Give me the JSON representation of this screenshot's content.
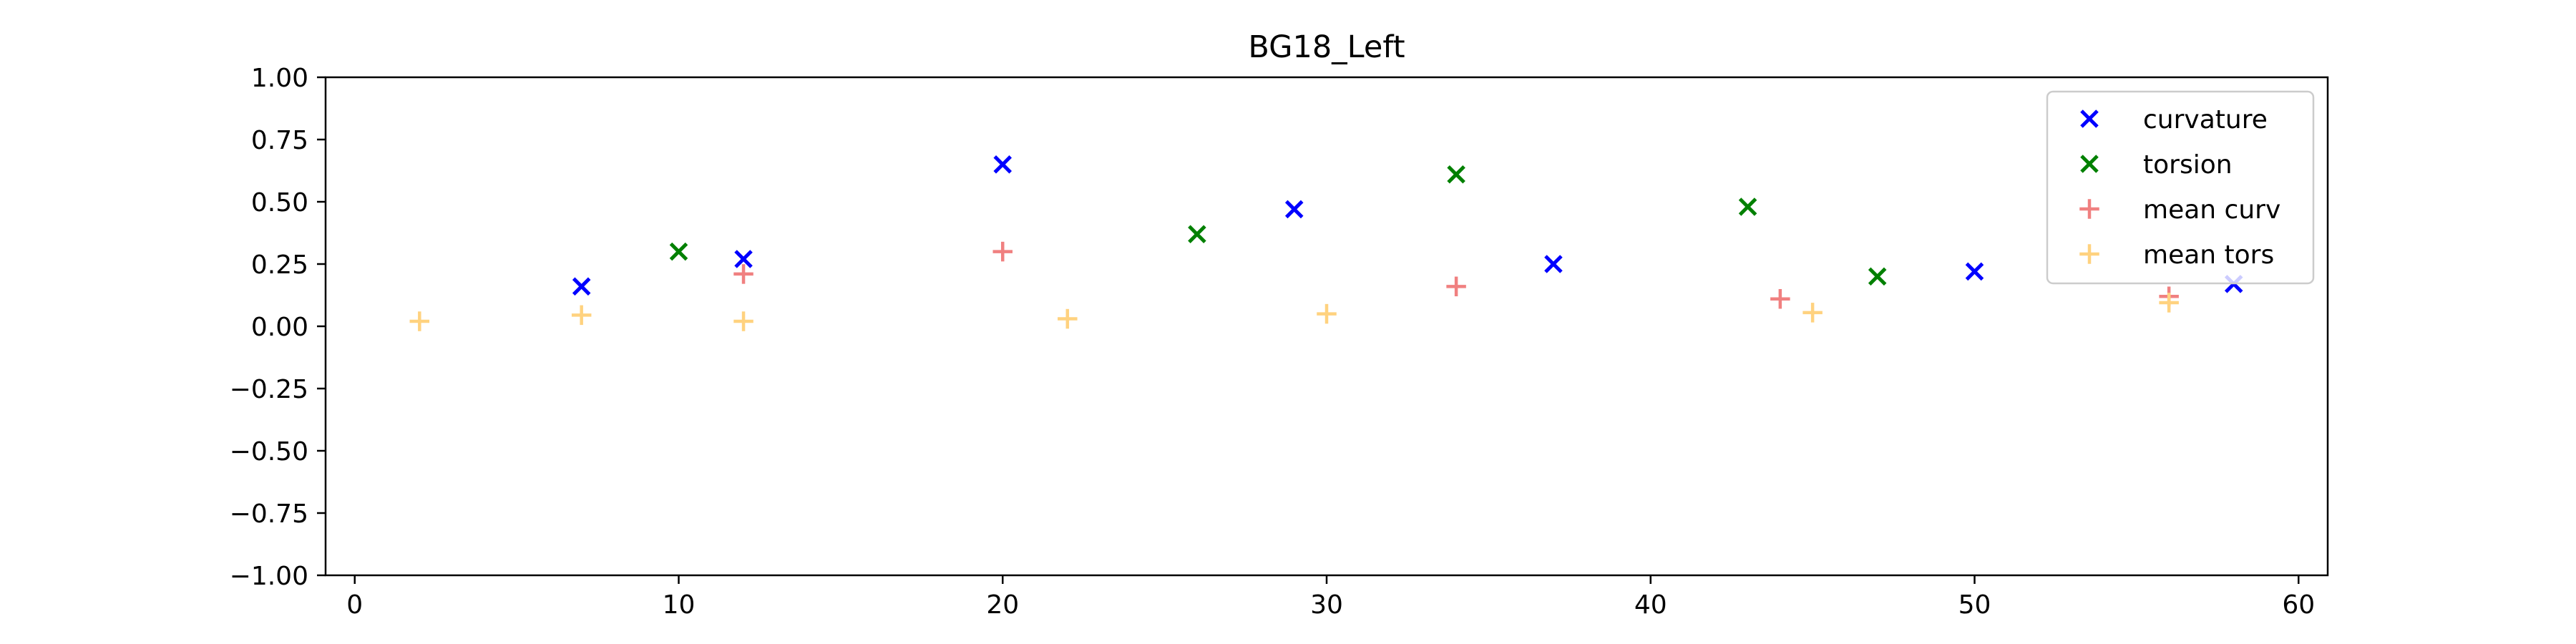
{
  "chart_data": {
    "type": "scatter",
    "title": "BG18_Left",
    "xlabel": "",
    "ylabel": "",
    "xlim": [
      -0.9,
      60.9
    ],
    "ylim": [
      -1.0,
      1.0
    ],
    "xticks": [
      0,
      10,
      20,
      30,
      40,
      50,
      60
    ],
    "yticks": [
      -1.0,
      -0.75,
      -0.5,
      -0.25,
      0.0,
      0.25,
      0.5,
      0.75,
      1.0
    ],
    "xtick_labels": [
      "0",
      "10",
      "20",
      "30",
      "40",
      "50",
      "60"
    ],
    "ytick_labels": [
      "−1.00",
      "−0.75",
      "−0.50",
      "−0.25",
      "0.00",
      "0.25",
      "0.50",
      "0.75",
      "1.00"
    ],
    "grid": false,
    "legend_position": "upper right",
    "series": [
      {
        "name": "curvature",
        "marker": "x",
        "color": "#0000ff",
        "points": [
          [
            7,
            0.16
          ],
          [
            12,
            0.27
          ],
          [
            20,
            0.65
          ],
          [
            29,
            0.47
          ],
          [
            37,
            0.25
          ],
          [
            50,
            0.22
          ],
          [
            58,
            0.17
          ]
        ]
      },
      {
        "name": "torsion",
        "marker": "x",
        "color": "#008000",
        "points": [
          [
            10,
            0.3
          ],
          [
            26,
            0.37
          ],
          [
            34,
            0.61
          ],
          [
            43,
            0.48
          ],
          [
            47,
            0.2
          ]
        ]
      },
      {
        "name": "mean curv",
        "marker": "+",
        "color": "#f08080",
        "points": [
          [
            12,
            0.21
          ],
          [
            20,
            0.3
          ],
          [
            34,
            0.16
          ],
          [
            44,
            0.11
          ],
          [
            56,
            0.12
          ]
        ]
      },
      {
        "name": "mean tors",
        "marker": "+",
        "color": "#ffd27f",
        "points": [
          [
            2,
            0.02
          ],
          [
            7,
            0.045
          ],
          [
            12,
            0.02
          ],
          [
            22,
            0.03
          ],
          [
            30,
            0.05
          ],
          [
            45,
            0.055
          ],
          [
            56,
            0.095
          ]
        ]
      }
    ]
  }
}
